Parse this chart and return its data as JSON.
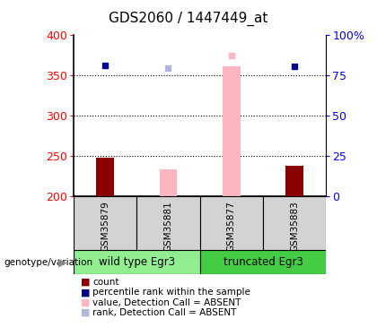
{
  "title": "GDS2060 / 1447449_at",
  "samples": [
    "GSM35879",
    "GSM35881",
    "GSM35877",
    "GSM35883"
  ],
  "ylim_left": [
    200,
    400
  ],
  "ylim_right": [
    0,
    100
  ],
  "yticks_left": [
    200,
    250,
    300,
    350,
    400
  ],
  "yticks_right": [
    0,
    25,
    50,
    75,
    100
  ],
  "ytick_labels_right": [
    "0",
    "25",
    "50",
    "75",
    "100%"
  ],
  "bar_values": [
    248,
    234,
    362,
    238
  ],
  "bar_colors": [
    "#8b0000",
    "#ffb6c1",
    "#ffb6c1",
    "#8b0000"
  ],
  "dot_values": [
    363,
    359,
    375,
    361
  ],
  "dot_colors": [
    "#00008b",
    "#b0b8e0",
    "#ffb6c1",
    "#00008b"
  ],
  "bg_color_plot": "#ffffff",
  "bg_color_sample": "#d3d3d3",
  "wild_type_color": "#90ee90",
  "truncated_color": "#44cc44",
  "grid_lines": [
    250,
    300,
    350
  ],
  "legend_items": [
    {
      "label": "count",
      "color": "#8b0000"
    },
    {
      "label": "percentile rank within the sample",
      "color": "#00008b"
    },
    {
      "label": "value, Detection Call = ABSENT",
      "color": "#ffb6c1"
    },
    {
      "label": "rank, Detection Call = ABSENT",
      "color": "#b0b8e0"
    }
  ]
}
